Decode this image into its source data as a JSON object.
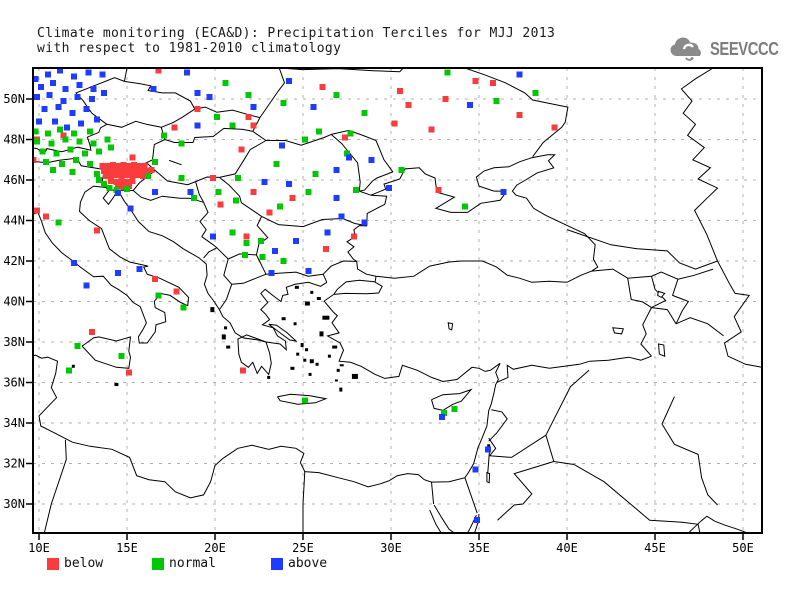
{
  "header": {
    "title_line1": "Climate monitoring (ECA&D): Precipitation Terciles for MJJ 2013",
    "title_line2": "with respect to 1981-2010 climatology",
    "logo_text": "SEEVCCC"
  },
  "legend": {
    "items": [
      {
        "label": "below",
        "color": "#fa3c3c"
      },
      {
        "label": "normal",
        "color": "#00c800"
      },
      {
        "label": "above",
        "color": "#1e3cff"
      }
    ]
  },
  "chart_data": {
    "type": "scatter",
    "title": "Climate monitoring (ECA&D): Precipitation Terciles for MJJ 2013 with respect to 1981-2010 climatology",
    "projection": "latlon",
    "lon_range": [
      9.66,
      51.08
    ],
    "lat_range": [
      28.57,
      51.53
    ],
    "lon_ticks": [
      "10E",
      "15E",
      "20E",
      "25E",
      "30E",
      "35E",
      "40E",
      "45E",
      "50E"
    ],
    "lat_ticks": [
      "30N",
      "32N",
      "34N",
      "36N",
      "38N",
      "40N",
      "42N",
      "44N",
      "46N",
      "48N",
      "50N"
    ],
    "grid": {
      "on": true,
      "style": "dashed",
      "color": "#b0b0b0",
      "lat_step": 2,
      "lon_step": 5
    },
    "legend_position": "bottom-left",
    "marker": "square",
    "marker_size_px": 6,
    "series": [
      {
        "name": "below",
        "color": "#fa3c3c",
        "points": [
          [
            13.6,
            46.7
          ],
          [
            13.9,
            46.7
          ],
          [
            14.2,
            46.75
          ],
          [
            14.5,
            46.7
          ],
          [
            14.8,
            46.75
          ],
          [
            15.1,
            46.7
          ],
          [
            15.4,
            46.75
          ],
          [
            15.7,
            46.7
          ],
          [
            16.0,
            46.7
          ],
          [
            13.7,
            46.45
          ],
          [
            14.0,
            46.5
          ],
          [
            14.3,
            46.45
          ],
          [
            14.6,
            46.5
          ],
          [
            14.9,
            46.45
          ],
          [
            15.2,
            46.5
          ],
          [
            15.5,
            46.45
          ],
          [
            15.8,
            46.5
          ],
          [
            16.1,
            46.45
          ],
          [
            16.4,
            46.5
          ],
          [
            13.8,
            46.2
          ],
          [
            14.1,
            46.2
          ],
          [
            14.4,
            46.25
          ],
          [
            14.7,
            46.2
          ],
          [
            15.0,
            46.25
          ],
          [
            15.3,
            46.2
          ],
          [
            15.6,
            46.25
          ],
          [
            15.9,
            46.2
          ],
          [
            14.1,
            45.95
          ],
          [
            14.4,
            45.9
          ],
          [
            14.7,
            45.95
          ],
          [
            15.0,
            45.9
          ],
          [
            15.3,
            45.95
          ],
          [
            14.5,
            45.7
          ],
          [
            14.8,
            45.65
          ],
          [
            15.1,
            45.7
          ],
          [
            11.4,
            48.2
          ],
          [
            9.9,
            48.0
          ],
          [
            9.7,
            47.0
          ],
          [
            15.3,
            47.1
          ],
          [
            9.9,
            44.5
          ],
          [
            10.4,
            44.2
          ],
          [
            13.3,
            43.5
          ],
          [
            16.6,
            41.1
          ],
          [
            17.8,
            40.5
          ],
          [
            13.0,
            38.5
          ],
          [
            15.1,
            36.5
          ],
          [
            21.6,
            36.6
          ],
          [
            16.8,
            51.4
          ],
          [
            19.0,
            49.5
          ],
          [
            21.9,
            49.1
          ],
          [
            22.2,
            48.7
          ],
          [
            17.7,
            48.6
          ],
          [
            21.5,
            47.5
          ],
          [
            19.9,
            46.1
          ],
          [
            22.2,
            45.4
          ],
          [
            20.3,
            44.8
          ],
          [
            23.1,
            44.4
          ],
          [
            24.4,
            45.1
          ],
          [
            27.4,
            48.1
          ],
          [
            26.1,
            50.6
          ],
          [
            34.8,
            50.9
          ],
          [
            35.8,
            50.8
          ],
          [
            30.5,
            50.4
          ],
          [
            33.1,
            50.0
          ],
          [
            31.0,
            49.7
          ],
          [
            30.2,
            48.8
          ],
          [
            32.3,
            48.5
          ],
          [
            37.3,
            49.2
          ],
          [
            39.3,
            48.6
          ],
          [
            32.7,
            45.5
          ],
          [
            21.8,
            43.2
          ],
          [
            27.9,
            43.2
          ],
          [
            26.3,
            42.6
          ]
        ]
      },
      {
        "name": "normal",
        "color": "#00c800",
        "points": [
          [
            9.8,
            48.4
          ],
          [
            10.5,
            48.3
          ],
          [
            11.2,
            48.5
          ],
          [
            12.0,
            48.3
          ],
          [
            12.9,
            48.4
          ],
          [
            9.9,
            47.9
          ],
          [
            10.7,
            47.8
          ],
          [
            11.5,
            48.0
          ],
          [
            12.3,
            47.9
          ],
          [
            13.1,
            47.8
          ],
          [
            13.9,
            48.0
          ],
          [
            10.2,
            47.4
          ],
          [
            11.0,
            47.3
          ],
          [
            11.8,
            47.5
          ],
          [
            12.6,
            47.3
          ],
          [
            13.4,
            47.4
          ],
          [
            14.1,
            47.6
          ],
          [
            10.4,
            46.9
          ],
          [
            11.3,
            46.8
          ],
          [
            12.1,
            47.0
          ],
          [
            12.9,
            46.8
          ],
          [
            10.8,
            46.5
          ],
          [
            11.9,
            46.4
          ],
          [
            13.3,
            46.3
          ],
          [
            13.4,
            46.0
          ],
          [
            13.7,
            45.8
          ],
          [
            14.0,
            45.6
          ],
          [
            14.4,
            45.5
          ],
          [
            15.0,
            45.55
          ],
          [
            16.2,
            46.2
          ],
          [
            16.6,
            46.9
          ],
          [
            20.6,
            50.8
          ],
          [
            21.9,
            50.2
          ],
          [
            23.9,
            49.8
          ],
          [
            26.9,
            50.2
          ],
          [
            20.1,
            49.1
          ],
          [
            21.0,
            48.7
          ],
          [
            17.1,
            48.2
          ],
          [
            18.1,
            47.8
          ],
          [
            25.9,
            48.4
          ],
          [
            25.1,
            48.0
          ],
          [
            23.5,
            46.8
          ],
          [
            25.7,
            46.3
          ],
          [
            27.5,
            47.3
          ],
          [
            18.1,
            46.1
          ],
          [
            21.3,
            46.1
          ],
          [
            20.2,
            45.4
          ],
          [
            25.3,
            45.4
          ],
          [
            21.2,
            45.0
          ],
          [
            18.8,
            45.1
          ],
          [
            23.7,
            44.7
          ],
          [
            33.2,
            51.3
          ],
          [
            36.0,
            49.9
          ],
          [
            28.5,
            49.3
          ],
          [
            27.7,
            48.3
          ],
          [
            28.0,
            45.5
          ],
          [
            30.6,
            46.5
          ],
          [
            34.2,
            44.7
          ],
          [
            38.2,
            50.3
          ],
          [
            21.0,
            43.4
          ],
          [
            21.8,
            42.9
          ],
          [
            22.6,
            43.0
          ],
          [
            21.7,
            42.3
          ],
          [
            22.7,
            42.2
          ],
          [
            23.9,
            42.0
          ],
          [
            16.8,
            40.3
          ],
          [
            18.2,
            39.7
          ],
          [
            12.2,
            37.8
          ],
          [
            14.7,
            37.3
          ],
          [
            11.7,
            36.6
          ],
          [
            11.1,
            43.9
          ],
          [
            25.1,
            35.1
          ],
          [
            33.0,
            34.5
          ],
          [
            33.6,
            34.7
          ]
        ]
      },
      {
        "name": "above",
        "color": "#1e3cff",
        "points": [
          [
            9.8,
            51.0
          ],
          [
            10.5,
            51.2
          ],
          [
            11.2,
            51.4
          ],
          [
            12.0,
            51.1
          ],
          [
            12.8,
            51.3
          ],
          [
            13.6,
            51.2
          ],
          [
            10.1,
            50.6
          ],
          [
            10.8,
            50.8
          ],
          [
            11.5,
            50.5
          ],
          [
            12.3,
            50.7
          ],
          [
            13.1,
            50.5
          ],
          [
            9.9,
            50.1
          ],
          [
            10.6,
            50.2
          ],
          [
            11.4,
            49.9
          ],
          [
            12.2,
            50.1
          ],
          [
            13.0,
            50.0
          ],
          [
            13.7,
            50.3
          ],
          [
            10.3,
            49.5
          ],
          [
            11.1,
            49.6
          ],
          [
            11.9,
            49.3
          ],
          [
            12.7,
            49.5
          ],
          [
            10.0,
            48.9
          ],
          [
            10.9,
            48.9
          ],
          [
            12.4,
            48.8
          ],
          [
            13.3,
            49.0
          ],
          [
            11.6,
            48.6
          ],
          [
            14.5,
            45.35
          ],
          [
            15.2,
            44.6
          ],
          [
            16.6,
            45.4
          ],
          [
            16.5,
            50.5
          ],
          [
            18.4,
            51.3
          ],
          [
            19.0,
            50.3
          ],
          [
            19.7,
            50.1
          ],
          [
            22.2,
            49.6
          ],
          [
            25.6,
            49.6
          ],
          [
            19.0,
            48.7
          ],
          [
            23.8,
            47.7
          ],
          [
            24.2,
            45.8
          ],
          [
            26.9,
            46.5
          ],
          [
            22.8,
            45.9
          ],
          [
            18.6,
            45.4
          ],
          [
            24.2,
            50.9
          ],
          [
            37.3,
            51.2
          ],
          [
            34.5,
            49.7
          ],
          [
            27.6,
            47.1
          ],
          [
            28.9,
            47.0
          ],
          [
            26.9,
            45.1
          ],
          [
            29.9,
            45.6
          ],
          [
            36.4,
            45.4
          ],
          [
            27.2,
            44.2
          ],
          [
            28.5,
            43.9
          ],
          [
            19.9,
            43.2
          ],
          [
            23.4,
            42.5
          ],
          [
            23.2,
            41.4
          ],
          [
            24.6,
            43.0
          ],
          [
            26.4,
            43.4
          ],
          [
            25.3,
            41.5
          ],
          [
            12.0,
            41.9
          ],
          [
            14.5,
            41.4
          ],
          [
            12.7,
            40.8
          ],
          [
            15.7,
            41.6
          ],
          [
            32.9,
            34.3
          ],
          [
            35.5,
            32.7
          ],
          [
            34.8,
            31.7
          ],
          [
            34.9,
            29.2
          ]
        ]
      }
    ]
  }
}
